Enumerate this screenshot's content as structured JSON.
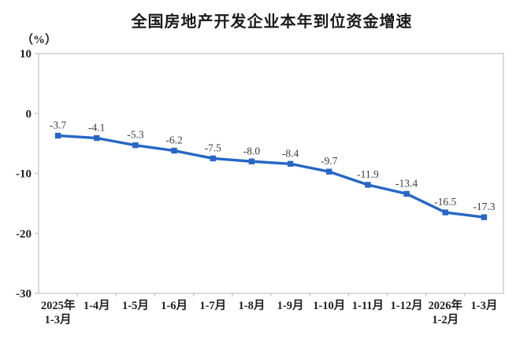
{
  "title": "全国房地产开发企业本年到位资金增速",
  "unit_label": "（%）",
  "chart_data": {
    "type": "line",
    "title": "全国房地产开发企业本年到位资金增速",
    "ylabel": "（%）",
    "xlabel": "",
    "categories": [
      "2025年\n1-3月",
      "1-4月",
      "1-5月",
      "1-6月",
      "1-7月",
      "1-8月",
      "1-9月",
      "1-10月",
      "1-11月",
      "1-12月",
      "2026年\n1-2月",
      "1-3月"
    ],
    "values": [
      -3.7,
      -4.1,
      -5.3,
      -6.2,
      -7.5,
      -8.0,
      -8.4,
      -9.7,
      -11.9,
      -13.4,
      -16.5,
      -17.3
    ],
    "data_labels": [
      "-3.7",
      "-4.1",
      "-5.3",
      "-6.2",
      "-7.5",
      "-8.0",
      "-8.4",
      "-9.7",
      "-11.9",
      "-13.4",
      "-16.5",
      "-17.3"
    ],
    "ylim": [
      -30,
      10
    ],
    "yticks": [
      10,
      0,
      -10,
      -20,
      -30
    ],
    "grid": false,
    "legend": "none",
    "marker": "square",
    "line_color": "#2767c5",
    "label_color": "#3c3c3c",
    "axis_color": "#c7c7c7",
    "tick_text_color": "#1f1f1f"
  }
}
